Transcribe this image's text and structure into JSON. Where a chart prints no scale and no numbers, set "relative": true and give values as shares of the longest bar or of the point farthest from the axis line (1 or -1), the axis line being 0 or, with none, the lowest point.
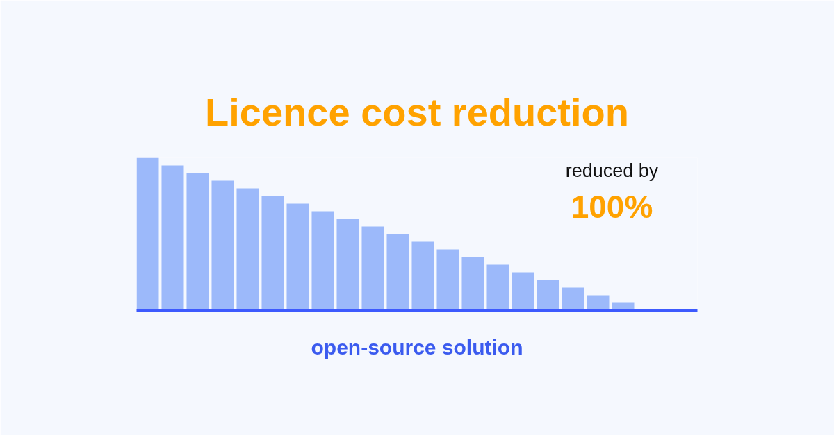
{
  "chart_data": {
    "type": "bar",
    "title": "Licence cost reduction",
    "xlabel": "open-source solution",
    "relative": true,
    "color": "#9cb9fa",
    "categories": [
      null,
      null,
      null,
      null,
      null,
      null,
      null,
      null,
      null,
      null,
      null,
      null,
      null,
      null,
      null,
      null,
      null,
      null,
      null,
      null
    ],
    "values": [
      1.0,
      0.95,
      0.9,
      0.85,
      0.8,
      0.75,
      0.7,
      0.65,
      0.6,
      0.55,
      0.5,
      0.45,
      0.4,
      0.35,
      0.3,
      0.25,
      0.2,
      0.15,
      0.1,
      0.05
    ],
    "annotations": [
      "reduced by",
      "100%"
    ],
    "grid": false
  }
}
